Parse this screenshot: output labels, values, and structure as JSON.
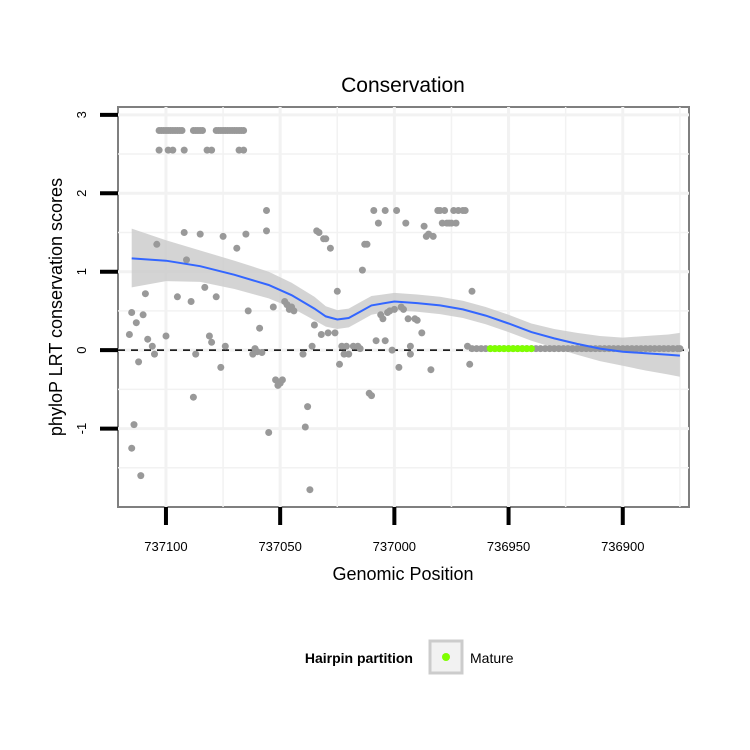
{
  "chart_data": {
    "type": "scatter",
    "title": "Conservation",
    "xlabel": "Genomic Position",
    "ylabel": "phyloP LRT conservation scores",
    "x_reversed": true,
    "xlim": [
      737121,
      736871
    ],
    "ylim": [
      -2.0,
      3.1
    ],
    "x_ticks": [
      737100,
      737050,
      737000,
      736950,
      736900
    ],
    "x_tick_labels": [
      "737100",
      "737050",
      "737000",
      "736950",
      "736900"
    ],
    "y_ticks": [
      -1,
      0,
      1,
      2,
      3
    ],
    "y_tick_labels": [
      "-1",
      "0",
      "1",
      "2",
      "3"
    ],
    "grid": true,
    "reference_line": {
      "y": 0,
      "style": "dashed"
    },
    "legend": {
      "title": "Hairpin partition",
      "entries": [
        "Mature"
      ],
      "position": "bottom"
    },
    "colors": {
      "points": "#999999",
      "mature": "#7fff00",
      "smooth_line": "#3366ff",
      "ribbon": "#cccccc",
      "panel_border": "#7f7f7f",
      "grid": "#f2f2f2"
    },
    "series": [
      {
        "name": "Scores",
        "points": [
          [
            737116,
            0.2
          ],
          [
            737115,
            0.48
          ],
          [
            737114,
            -0.95
          ],
          [
            737115,
            -1.25
          ],
          [
            737113,
            0.35
          ],
          [
            737112,
            -0.15
          ],
          [
            737111,
            -1.6
          ],
          [
            737110,
            0.45
          ],
          [
            737109,
            0.72
          ],
          [
            737108,
            0.14
          ],
          [
            737106,
            0.05
          ],
          [
            737105,
            -0.05
          ],
          [
            737104,
            1.35
          ],
          [
            737100,
            0.18
          ],
          [
            737095,
            0.68
          ],
          [
            737092,
            1.5
          ],
          [
            737091,
            1.15
          ],
          [
            737089,
            0.62
          ],
          [
            737088,
            -0.6
          ],
          [
            737087,
            -0.05
          ],
          [
            737085,
            1.48
          ],
          [
            737083,
            0.8
          ],
          [
            737081,
            0.18
          ],
          [
            737080,
            0.1
          ],
          [
            737078,
            0.68
          ],
          [
            737076,
            -0.22
          ],
          [
            737075,
            1.45
          ],
          [
            737074,
            0.05
          ],
          [
            737069,
            1.3
          ],
          [
            737065,
            1.48
          ],
          [
            737064,
            0.5
          ],
          [
            737062,
            -0.05
          ],
          [
            737061,
            0.02
          ],
          [
            737060,
            -0.02
          ],
          [
            737059,
            0.28
          ],
          [
            737058,
            -0.03
          ],
          [
            737056,
            1.52
          ],
          [
            737056,
            1.78
          ],
          [
            737055,
            -1.05
          ],
          [
            737053,
            0.55
          ],
          [
            737052,
            -0.38
          ],
          [
            737051,
            -0.45
          ],
          [
            737050,
            -0.42
          ],
          [
            737049,
            -0.38
          ],
          [
            737048,
            0.62
          ],
          [
            737047,
            0.58
          ],
          [
            737046,
            0.52
          ],
          [
            737045,
            0.55
          ],
          [
            737044,
            0.5
          ],
          [
            737040,
            -0.05
          ],
          [
            737039,
            -0.98
          ],
          [
            737038,
            -0.72
          ],
          [
            737037,
            -1.78
          ],
          [
            737036,
            0.05
          ],
          [
            737035,
            0.32
          ],
          [
            737034,
            1.52
          ],
          [
            737033,
            1.5
          ],
          [
            737032,
            0.2
          ],
          [
            737031,
            1.42
          ],
          [
            737030,
            1.42
          ],
          [
            737029,
            0.22
          ],
          [
            737028,
            1.3
          ],
          [
            737026,
            0.22
          ],
          [
            737025,
            0.75
          ],
          [
            737024,
            -0.18
          ],
          [
            737023,
            0.05
          ],
          [
            737022,
            -0.05
          ],
          [
            737021,
            0.05
          ],
          [
            737020,
            -0.05
          ],
          [
            737018,
            0.05
          ],
          [
            737016,
            0.05
          ],
          [
            737015,
            0.02
          ],
          [
            737014,
            1.02
          ],
          [
            737013,
            1.35
          ],
          [
            737012,
            1.35
          ],
          [
            737011,
            -0.55
          ],
          [
            737010,
            -0.58
          ],
          [
            737009,
            1.78
          ],
          [
            737008,
            0.12
          ],
          [
            737007,
            1.62
          ],
          [
            737006,
            0.45
          ],
          [
            737005,
            0.4
          ],
          [
            737004,
            0.12
          ],
          [
            737004,
            1.78
          ],
          [
            737003,
            0.48
          ],
          [
            737002,
            0.5
          ],
          [
            737001,
            0.0
          ],
          [
            737000,
            0.52
          ],
          [
            736999,
            1.78
          ],
          [
            736998,
            -0.22
          ],
          [
            736997,
            0.55
          ],
          [
            736996,
            0.52
          ],
          [
            736995,
            1.62
          ],
          [
            736994,
            0.4
          ],
          [
            736993,
            0.05
          ],
          [
            736993,
            -0.05
          ],
          [
            736991,
            0.4
          ],
          [
            736990,
            0.38
          ],
          [
            736988,
            0.22
          ],
          [
            736987,
            1.58
          ],
          [
            736986,
            1.45
          ],
          [
            736985,
            1.48
          ],
          [
            736984,
            -0.25
          ],
          [
            736983,
            1.45
          ],
          [
            736981,
            1.78
          ],
          [
            736980,
            1.78
          ],
          [
            736979,
            1.62
          ],
          [
            736978,
            1.78
          ],
          [
            736977,
            1.62
          ],
          [
            736976,
            1.62
          ],
          [
            736975,
            1.62
          ],
          [
            736974,
            1.78
          ],
          [
            736973,
            1.62
          ],
          [
            736972,
            1.78
          ],
          [
            736970,
            1.78
          ],
          [
            736969,
            1.78
          ],
          [
            736968,
            0.05
          ],
          [
            736967,
            -0.18
          ],
          [
            736966,
            0.75
          ],
          [
            737103,
            2.8
          ],
          [
            737102,
            2.8
          ],
          [
            737101,
            2.8
          ],
          [
            737100,
            2.8
          ],
          [
            737099,
            2.8
          ],
          [
            737098,
            2.8
          ],
          [
            737097,
            2.8
          ],
          [
            737096,
            2.8
          ],
          [
            737095,
            2.8
          ],
          [
            737094,
            2.8
          ],
          [
            737093,
            2.8
          ],
          [
            737088,
            2.8
          ],
          [
            737087,
            2.8
          ],
          [
            737086,
            2.8
          ],
          [
            737085,
            2.8
          ],
          [
            737084,
            2.8
          ],
          [
            737078,
            2.8
          ],
          [
            737077,
            2.8
          ],
          [
            737076,
            2.8
          ],
          [
            737075,
            2.8
          ],
          [
            737074,
            2.8
          ],
          [
            737073,
            2.8
          ],
          [
            737072,
            2.8
          ],
          [
            737071,
            2.8
          ],
          [
            737070,
            2.8
          ],
          [
            737069,
            2.8
          ],
          [
            737068,
            2.8
          ],
          [
            737067,
            2.8
          ],
          [
            737066,
            2.8
          ],
          [
            737103,
            2.55
          ],
          [
            737099,
            2.55
          ],
          [
            737097,
            2.55
          ],
          [
            737092,
            2.55
          ],
          [
            737082,
            2.55
          ],
          [
            737080,
            2.55
          ],
          [
            737068,
            2.55
          ],
          [
            737066,
            2.55
          ],
          [
            736966,
            0.02
          ],
          [
            736964,
            0.02
          ],
          [
            736962,
            0.02
          ],
          [
            736960,
            0.02
          ],
          [
            736958,
            0.02
          ],
          [
            736956,
            0.02
          ],
          [
            736954,
            0.02
          ],
          [
            736952,
            0.02
          ],
          [
            736950,
            0.02
          ],
          [
            736948,
            0.02
          ],
          [
            736946,
            0.02
          ],
          [
            736944,
            0.02
          ],
          [
            736942,
            0.02
          ],
          [
            736940,
            0.02
          ],
          [
            736938,
            0.02
          ],
          [
            736936,
            0.02
          ],
          [
            736934,
            0.02
          ],
          [
            736932,
            0.02
          ],
          [
            736930,
            0.02
          ],
          [
            736928,
            0.02
          ],
          [
            736926,
            0.02
          ],
          [
            736924,
            0.02
          ],
          [
            736922,
            0.02
          ],
          [
            736920,
            0.02
          ],
          [
            736918,
            0.02
          ],
          [
            736916,
            0.02
          ],
          [
            736914,
            0.02
          ],
          [
            736912,
            0.02
          ],
          [
            736910,
            0.02
          ],
          [
            736908,
            0.02
          ],
          [
            736906,
            0.02
          ],
          [
            736904,
            0.02
          ],
          [
            736902,
            0.02
          ],
          [
            736900,
            0.02
          ],
          [
            736898,
            0.02
          ],
          [
            736896,
            0.02
          ],
          [
            736894,
            0.02
          ],
          [
            736892,
            0.02
          ],
          [
            736890,
            0.02
          ],
          [
            736888,
            0.02
          ],
          [
            736886,
            0.02
          ],
          [
            736884,
            0.02
          ],
          [
            736882,
            0.02
          ],
          [
            736880,
            0.02
          ],
          [
            736878,
            0.02
          ],
          [
            736876,
            0.02
          ],
          [
            736875,
            0.02
          ]
        ]
      },
      {
        "name": "Mature",
        "points": [
          [
            736958,
            0.02
          ],
          [
            736956,
            0.02
          ],
          [
            736954,
            0.02
          ],
          [
            736952,
            0.02
          ],
          [
            736950,
            0.02
          ],
          [
            736948,
            0.02
          ],
          [
            736946,
            0.02
          ],
          [
            736944,
            0.02
          ],
          [
            736942,
            0.02
          ],
          [
            736940,
            0.02
          ]
        ]
      }
    ],
    "smooth": {
      "x": [
        737115,
        737100,
        737085,
        737070,
        737055,
        737045,
        737035,
        737030,
        737025,
        737020,
        737015,
        737010,
        737000,
        736990,
        736980,
        736970,
        736960,
        736950,
        736940,
        736930,
        736920,
        736910,
        736900,
        736890,
        736880,
        736875
      ],
      "y": [
        1.17,
        1.14,
        1.07,
        0.96,
        0.83,
        0.7,
        0.53,
        0.43,
        0.39,
        0.41,
        0.49,
        0.57,
        0.62,
        0.6,
        0.57,
        0.52,
        0.44,
        0.34,
        0.23,
        0.15,
        0.08,
        0.02,
        -0.02,
        -0.04,
        -0.06,
        -0.07
      ],
      "lower": [
        0.8,
        0.88,
        0.87,
        0.78,
        0.66,
        0.54,
        0.38,
        0.3,
        0.27,
        0.29,
        0.37,
        0.45,
        0.51,
        0.49,
        0.46,
        0.41,
        0.33,
        0.23,
        0.12,
        0.03,
        -0.06,
        -0.14,
        -0.2,
        -0.26,
        -0.31,
        -0.34
      ],
      "upper": [
        1.55,
        1.4,
        1.27,
        1.14,
        1.0,
        0.86,
        0.68,
        0.56,
        0.51,
        0.53,
        0.61,
        0.69,
        0.73,
        0.71,
        0.68,
        0.63,
        0.55,
        0.45,
        0.34,
        0.27,
        0.22,
        0.18,
        0.16,
        0.18,
        0.2,
        0.22
      ]
    }
  }
}
